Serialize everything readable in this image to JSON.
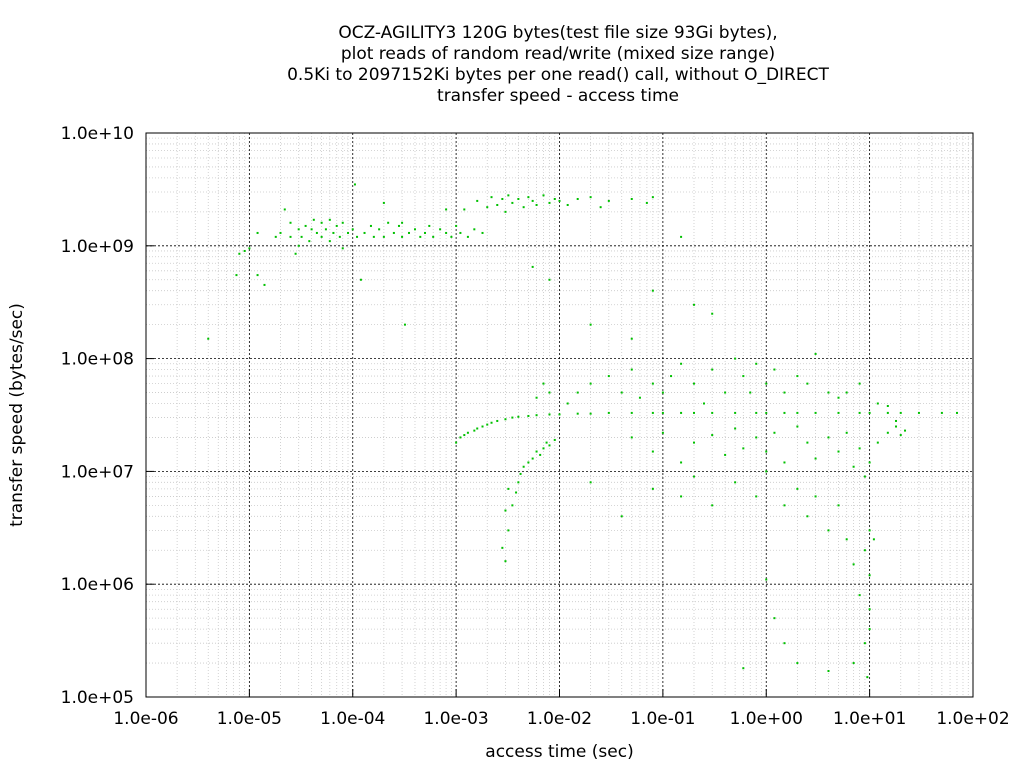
{
  "chart_data": {
    "type": "scatter",
    "title_lines": [
      "OCZ-AGILITY3 120G bytes(test file size 93Gi bytes),",
      "plot reads of random read/write (mixed size range)",
      "0.5Ki to 2097152Ki bytes per one read() call, without O_DIRECT",
      "transfer speed - access time"
    ],
    "xlabel": "access time (sec)",
    "ylabel": "transfer speed (bytes/sec)",
    "x_scale": "log",
    "y_scale": "log",
    "xlim": [
      1e-06,
      100
    ],
    "ylim": [
      100000,
      10000000000
    ],
    "x_ticks": [
      {
        "value": 1e-06,
        "label": "1.0e-06"
      },
      {
        "value": 1e-05,
        "label": "1.0e-05"
      },
      {
        "value": 0.0001,
        "label": "1.0e-04"
      },
      {
        "value": 0.001,
        "label": "1.0e-03"
      },
      {
        "value": 0.01,
        "label": "1.0e-02"
      },
      {
        "value": 0.1,
        "label": "1.0e-01"
      },
      {
        "value": 1,
        "label": "1.0e+00"
      },
      {
        "value": 10,
        "label": "1.0e+01"
      },
      {
        "value": 100,
        "label": "1.0e+02"
      }
    ],
    "y_ticks": [
      {
        "value": 100000,
        "label": "1.0e+05"
      },
      {
        "value": 1000000,
        "label": "1.0e+06"
      },
      {
        "value": 10000000,
        "label": "1.0e+07"
      },
      {
        "value": 100000000,
        "label": "1.0e+08"
      },
      {
        "value": 1000000000,
        "label": "1.0e+09"
      },
      {
        "value": 10000000000,
        "label": "1.0e+10"
      }
    ],
    "grid": true,
    "minor_grid": true,
    "series": [
      {
        "color": "#00c000",
        "marker": "dot",
        "points": [
          [
            4e-06,
            150000000.0
          ],
          [
            7.5e-06,
            550000000.0
          ],
          [
            8e-06,
            850000000.0
          ],
          [
            9e-06,
            900000000.0
          ],
          [
            1e-05,
            950000000.0
          ],
          [
            1.2e-05,
            1300000000.0
          ],
          [
            1.2e-05,
            550000000.0
          ],
          [
            1.4e-05,
            450000000.0
          ],
          [
            1.8e-05,
            1200000000.0
          ],
          [
            2e-05,
            1300000000.0
          ],
          [
            2.2e-05,
            2100000000.0
          ],
          [
            2.5e-05,
            1200000000.0
          ],
          [
            2.5e-05,
            1600000000.0
          ],
          [
            2.8e-05,
            850000000.0
          ],
          [
            3e-05,
            1000000000.0
          ],
          [
            3e-05,
            1400000000.0
          ],
          [
            3.2e-05,
            1200000000.0
          ],
          [
            3.5e-05,
            1500000000.0
          ],
          [
            3.8e-05,
            1100000000.0
          ],
          [
            4e-05,
            1400000000.0
          ],
          [
            4.2e-05,
            1700000000.0
          ],
          [
            4.5e-05,
            1300000000.0
          ],
          [
            5e-05,
            1200000000.0
          ],
          [
            5e-05,
            1600000000.0
          ],
          [
            5.5e-05,
            1400000000.0
          ],
          [
            6e-05,
            1100000000.0
          ],
          [
            6e-05,
            1700000000.0
          ],
          [
            6.5e-05,
            1300000000.0
          ],
          [
            7e-05,
            1500000000.0
          ],
          [
            7.5e-05,
            1200000000.0
          ],
          [
            8e-05,
            1600000000.0
          ],
          [
            8e-05,
            950000000.0
          ],
          [
            9e-05,
            1300000000.0
          ],
          [
            0.0001,
            1400000000.0
          ],
          [
            0.000105,
            3500000000.0
          ],
          [
            0.00011,
            1200000000.0
          ],
          [
            0.00012,
            500000000.0
          ],
          [
            0.00013,
            1300000000.0
          ],
          [
            0.00015,
            1500000000.0
          ],
          [
            0.00016,
            1200000000.0
          ],
          [
            0.00018,
            1400000000.0
          ],
          [
            0.0002,
            1200000000.0
          ],
          [
            0.0002,
            2400000000.0
          ],
          [
            0.00022,
            1600000000.0
          ],
          [
            0.00025,
            1300000000.0
          ],
          [
            0.00028,
            1500000000.0
          ],
          [
            0.0003,
            1200000000.0
          ],
          [
            0.0003,
            1600000000.0
          ],
          [
            0.00032,
            200000000.0
          ],
          [
            0.00035,
            1300000000.0
          ],
          [
            0.0004,
            1400000000.0
          ],
          [
            0.00045,
            1200000000.0
          ],
          [
            0.0005,
            1300000000.0
          ],
          [
            0.00055,
            1500000000.0
          ],
          [
            0.0006,
            1200000000.0
          ],
          [
            0.0007,
            1400000000.0
          ],
          [
            0.0008,
            1300000000.0
          ],
          [
            0.0008,
            2100000000.0
          ],
          [
            0.0009,
            1200000000.0
          ],
          [
            0.001,
            1500000000.0
          ],
          [
            0.0011,
            1300000000.0
          ],
          [
            0.0012,
            2100000000.0
          ],
          [
            0.0013,
            1200000000.0
          ],
          [
            0.0015,
            1400000000.0
          ],
          [
            0.0016,
            2500000000.0
          ],
          [
            0.0018,
            1300000000.0
          ],
          [
            0.002,
            2200000000.0
          ],
          [
            0.0022,
            2700000000.0
          ],
          [
            0.0025,
            2300000000.0
          ],
          [
            0.0028,
            2600000000.0
          ],
          [
            0.003,
            2000000000.0
          ],
          [
            0.0032,
            2800000000.0
          ],
          [
            0.0035,
            2400000000.0
          ],
          [
            0.004,
            2600000000.0
          ],
          [
            0.0045,
            2200000000.0
          ],
          [
            0.005,
            2700000000.0
          ],
          [
            0.0055,
            2500000000.0
          ],
          [
            0.006,
            2300000000.0
          ],
          [
            0.007,
            2800000000.0
          ],
          [
            0.008,
            2400000000.0
          ],
          [
            0.009,
            2600000000.0
          ],
          [
            0.01,
            2500000000.0
          ],
          [
            0.012,
            2300000000.0
          ],
          [
            0.015,
            2600000000.0
          ],
          [
            0.02,
            2700000000.0
          ],
          [
            0.025,
            2200000000.0
          ],
          [
            0.03,
            2500000000.0
          ],
          [
            0.05,
            2600000000.0
          ],
          [
            0.07,
            2400000000.0
          ],
          [
            0.08,
            2700000000.0
          ],
          [
            0.0055,
            650000000.0
          ],
          [
            0.008,
            500000000.0
          ],
          [
            0.02,
            200000000.0
          ],
          [
            0.05,
            150000000.0
          ],
          [
            0.08,
            400000000.0
          ],
          [
            0.15,
            1200000000.0
          ],
          [
            0.2,
            300000000.0
          ],
          [
            0.3,
            250000000.0
          ],
          [
            0.003,
            1600000.0
          ],
          [
            0.0028,
            2100000.0
          ],
          [
            0.0032,
            3000000.0
          ],
          [
            0.003,
            4500000.0
          ],
          [
            0.0035,
            5000000.0
          ],
          [
            0.0032,
            7000000.0
          ],
          [
            0.0038,
            6500000.0
          ],
          [
            0.004,
            8000000.0
          ],
          [
            0.0045,
            11000000.0
          ],
          [
            0.0042,
            9500000.0
          ],
          [
            0.005,
            12000000.0
          ],
          [
            0.0055,
            13000000.0
          ],
          [
            0.006,
            15000000.0
          ],
          [
            0.0065,
            14000000.0
          ],
          [
            0.007,
            16000000.0
          ],
          [
            0.0075,
            18000000.0
          ],
          [
            0.008,
            17000000.0
          ],
          [
            0.009,
            19000000.0
          ],
          [
            0.001,
            18000000.0
          ],
          [
            0.0011,
            20000000.0
          ],
          [
            0.0012,
            21000000.0
          ],
          [
            0.0013,
            22000000.0
          ],
          [
            0.0015,
            23000000.0
          ],
          [
            0.0016,
            24000000.0
          ],
          [
            0.0018,
            25000000.0
          ],
          [
            0.002,
            26000000.0
          ],
          [
            0.0022,
            27000000.0
          ],
          [
            0.0025,
            28000000.0
          ],
          [
            0.003,
            29000000.0
          ],
          [
            0.0035,
            30000000.0
          ],
          [
            0.004,
            30500000.0
          ],
          [
            0.005,
            31000000.0
          ],
          [
            0.006,
            31500000.0
          ],
          [
            0.008,
            32000000.0
          ],
          [
            0.01,
            32000000.0
          ],
          [
            0.015,
            32500000.0
          ],
          [
            0.02,
            32500000.0
          ],
          [
            0.03,
            33000000.0
          ],
          [
            0.05,
            33000000.0
          ],
          [
            0.08,
            33000000.0
          ],
          [
            0.1,
            33000000.0
          ],
          [
            0.15,
            33000000.0
          ],
          [
            0.2,
            33000000.0
          ],
          [
            0.3,
            33000000.0
          ],
          [
            0.5,
            33000000.0
          ],
          [
            0.8,
            33000000.0
          ],
          [
            1,
            33000000.0
          ],
          [
            1.5,
            33000000.0
          ],
          [
            2,
            33000000.0
          ],
          [
            3,
            33000000.0
          ],
          [
            5,
            33000000.0
          ],
          [
            8,
            33000000.0
          ],
          [
            10,
            33000000.0
          ],
          [
            15,
            33000000.0
          ],
          [
            20,
            33000000.0
          ],
          [
            30,
            33000000.0
          ],
          [
            50,
            33000000.0
          ],
          [
            70,
            33000000.0
          ],
          [
            0.006,
            45000000.0
          ],
          [
            0.007,
            60000000.0
          ],
          [
            0.008,
            50000000.0
          ],
          [
            0.012,
            40000000.0
          ],
          [
            0.015,
            50000000.0
          ],
          [
            0.02,
            60000000.0
          ],
          [
            0.03,
            70000000.0
          ],
          [
            0.04,
            50000000.0
          ],
          [
            0.05,
            80000000.0
          ],
          [
            0.06,
            45000000.0
          ],
          [
            0.08,
            60000000.0
          ],
          [
            0.1,
            50000000.0
          ],
          [
            0.12,
            70000000.0
          ],
          [
            0.15,
            90000000.0
          ],
          [
            0.2,
            60000000.0
          ],
          [
            0.25,
            40000000.0
          ],
          [
            0.3,
            80000000.0
          ],
          [
            0.4,
            50000000.0
          ],
          [
            0.5,
            100000000.0
          ],
          [
            0.6,
            70000000.0
          ],
          [
            0.7,
            50000000.0
          ],
          [
            0.8,
            90000000.0
          ],
          [
            1,
            60000000.0
          ],
          [
            1.2,
            80000000.0
          ],
          [
            1.5,
            50000000.0
          ],
          [
            2,
            70000000.0
          ],
          [
            2.5,
            60000000.0
          ],
          [
            3,
            110000000.0
          ],
          [
            4,
            50000000.0
          ],
          [
            5,
            45000000.0
          ],
          [
            6,
            50000000.0
          ],
          [
            8,
            60000000.0
          ],
          [
            0.05,
            20000000.0
          ],
          [
            0.08,
            15000000.0
          ],
          [
            0.1,
            22000000.0
          ],
          [
            0.15,
            12000000.0
          ],
          [
            0.2,
            18000000.0
          ],
          [
            0.3,
            21000000.0
          ],
          [
            0.4,
            14000000.0
          ],
          [
            0.5,
            24000000.0
          ],
          [
            0.6,
            16000000.0
          ],
          [
            0.8,
            20000000.0
          ],
          [
            1,
            15000000.0
          ],
          [
            1.2,
            22000000.0
          ],
          [
            1.5,
            12000000.0
          ],
          [
            2,
            25000000.0
          ],
          [
            2.5,
            18000000.0
          ],
          [
            3,
            13000000.0
          ],
          [
            4,
            20000000.0
          ],
          [
            5,
            15000000.0
          ],
          [
            6,
            22000000.0
          ],
          [
            7,
            11000000.0
          ],
          [
            8,
            16000000.0
          ],
          [
            9,
            9000000.0
          ],
          [
            10,
            12000000.0
          ],
          [
            12,
            18000000.0
          ],
          [
            15,
            22000000.0
          ],
          [
            18,
            25000000.0
          ],
          [
            20,
            21000000.0
          ],
          [
            22,
            23000000.0
          ],
          [
            12,
            40000000.0
          ],
          [
            15,
            38000000.0
          ],
          [
            18,
            28000000.0
          ],
          [
            0.02,
            8000000.0
          ],
          [
            0.04,
            4000000.0
          ],
          [
            0.08,
            7000000.0
          ],
          [
            0.15,
            6000000.0
          ],
          [
            0.2,
            9000000.0
          ],
          [
            0.3,
            5000000.0
          ],
          [
            0.5,
            8000000.0
          ],
          [
            0.8,
            6000000.0
          ],
          [
            1,
            10000000.0
          ],
          [
            1.5,
            5000000.0
          ],
          [
            2,
            7000000.0
          ],
          [
            2.5,
            4000000.0
          ],
          [
            3,
            6000000.0
          ],
          [
            4,
            3000000.0
          ],
          [
            5,
            5000000.0
          ],
          [
            6,
            2500000.0
          ],
          [
            7,
            1500000.0
          ],
          [
            8,
            800000.0
          ],
          [
            9,
            2000000.0
          ],
          [
            10,
            3000000.0
          ],
          [
            10,
            1200000.0
          ],
          [
            10,
            600000.0
          ],
          [
            10,
            400000.0
          ],
          [
            11,
            2500000.0
          ],
          [
            9.5,
            150000.0
          ],
          [
            9,
            300000.0
          ],
          [
            7,
            200000.0
          ],
          [
            4,
            170000.0
          ],
          [
            2,
            200000.0
          ],
          [
            1.5,
            300000.0
          ],
          [
            1.2,
            500000.0
          ],
          [
            0.6,
            180000.0
          ],
          [
            1,
            1100000.0
          ]
        ]
      }
    ]
  }
}
